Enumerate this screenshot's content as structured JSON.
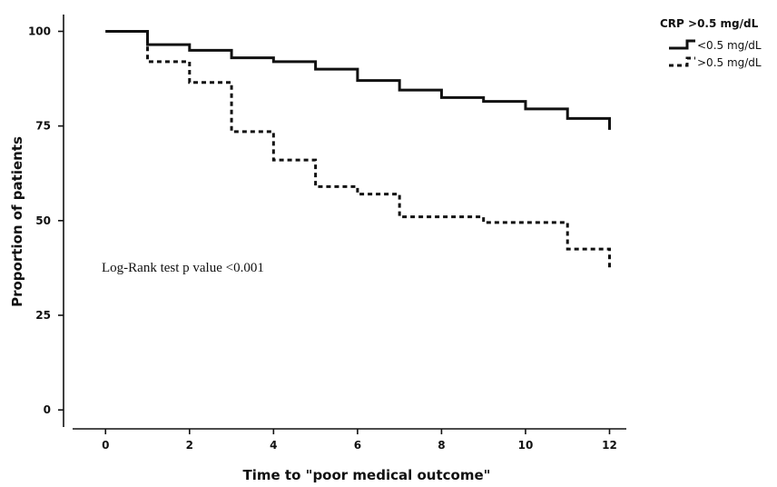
{
  "chart_data": {
    "type": "line",
    "subtype": "kaplan-meier step",
    "xlabel": "Time to \"poor medical outcome\"",
    "ylabel": "Proportion of patients",
    "xlim": [
      -1,
      12.4
    ],
    "ylim": [
      -5,
      103
    ],
    "xticks": [
      0,
      2,
      4,
      6,
      8,
      10,
      12
    ],
    "yticks": [
      0,
      25,
      50,
      75,
      100
    ],
    "grid": false,
    "legend": {
      "title": "CRP >0.5 mg/dL",
      "position": "top-right"
    },
    "annotation": "Log-Rank test p value <0.001",
    "series": [
      {
        "name": "<0.5 mg/dL",
        "style": "solid",
        "x": [
          0,
          1,
          2,
          3,
          4,
          5,
          6,
          7,
          8,
          9,
          10,
          11,
          12
        ],
        "y": [
          100,
          96.5,
          95,
          93,
          92,
          90,
          87,
          84.5,
          82.5,
          81.5,
          79.5,
          77,
          74
        ]
      },
      {
        "name": ">0.5 mg/dL",
        "style": "dashed",
        "x": [
          0,
          1,
          2,
          3,
          4,
          5,
          6,
          7,
          8,
          9,
          10,
          11,
          12
        ],
        "y": [
          100,
          92,
          86.5,
          73.5,
          66,
          59,
          57,
          51,
          51,
          49.5,
          49.5,
          42.5,
          37
        ]
      }
    ]
  }
}
